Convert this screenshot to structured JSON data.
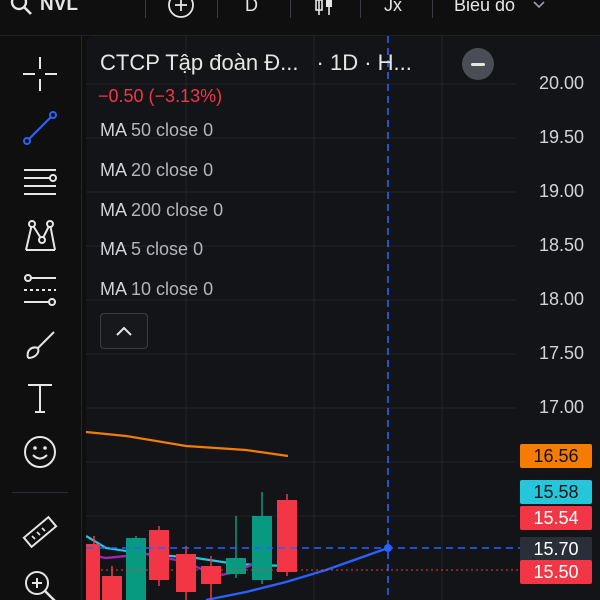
{
  "toolbar": {
    "symbol": "NVL",
    "interval": "D",
    "indicator_label": "Jx",
    "chart_menu": "Biểu đồ"
  },
  "legend": {
    "title": "CTCP Tập đoàn Đ...",
    "meta": "· 1D · H...",
    "change": "−0.50 (−3.13%)",
    "ma": [
      {
        "name": "MA",
        "params": "50 close 0"
      },
      {
        "name": "MA",
        "params": "20 close 0"
      },
      {
        "name": "MA",
        "params": "200 close 0"
      },
      {
        "name": "MA",
        "params": "5 close 0"
      },
      {
        "name": "MA",
        "params": "10 close 0"
      }
    ]
  },
  "price_axis": {
    "labels": [
      "20.00",
      "19.50",
      "19.00",
      "18.50",
      "18.00",
      "17.50",
      "17.00"
    ]
  },
  "price_tags": [
    {
      "text": "16.56",
      "bg": "#f57c00",
      "fg": "#131417"
    },
    {
      "text": "15.58",
      "bg": "#26c6da",
      "fg": "#131417"
    },
    {
      "text": "15.54",
      "bg": "#f23645",
      "fg": "#ffffff"
    },
    {
      "text": "15.70",
      "bg": "#2a2e39",
      "fg": "#ffffff"
    },
    {
      "text": "15.50",
      "bg": "#f23645",
      "fg": "#ffffff"
    }
  ],
  "colors": {
    "up": "#089981",
    "down": "#f23645",
    "ma_orange": "#f57c00",
    "ma_blue": "#2962ff",
    "ma_purple": "#9c27b0",
    "ma_cyan": "#26c6da",
    "crosshair": "#2962ff"
  },
  "icons": [
    "search-icon",
    "plus-circle-icon",
    "candles-icon",
    "crosshair-icon",
    "trend-line-icon",
    "fib-lines-icon",
    "pattern-icon",
    "measure-icon",
    "brush-icon",
    "text-icon",
    "emoji-icon",
    "ruler-icon",
    "zoom-in-icon"
  ]
}
